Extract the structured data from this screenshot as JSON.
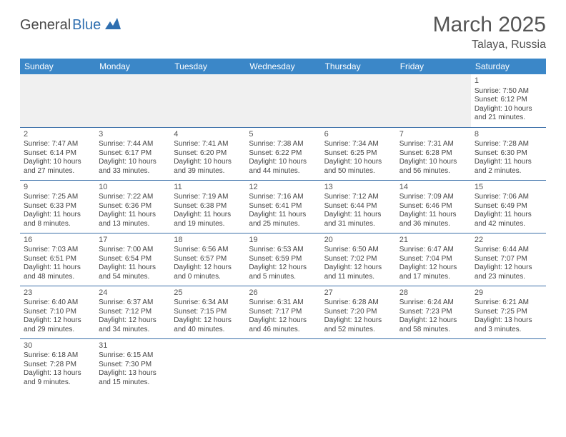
{
  "logo": {
    "text1": "General",
    "text2": "Blue"
  },
  "title": "March 2025",
  "location": "Talaya, Russia",
  "colors": {
    "header_bg": "#3b87c8",
    "header_fg": "#ffffff",
    "rule": "#3b6fa8",
    "text": "#444444",
    "title": "#555555"
  },
  "weekdays": [
    "Sunday",
    "Monday",
    "Tuesday",
    "Wednesday",
    "Thursday",
    "Friday",
    "Saturday"
  ],
  "weeks": [
    [
      null,
      null,
      null,
      null,
      null,
      null,
      {
        "n": "1",
        "sr": "Sunrise: 7:50 AM",
        "ss": "Sunset: 6:12 PM",
        "dl": "Daylight: 10 hours and 21 minutes."
      }
    ],
    [
      {
        "n": "2",
        "sr": "Sunrise: 7:47 AM",
        "ss": "Sunset: 6:14 PM",
        "dl": "Daylight: 10 hours and 27 minutes."
      },
      {
        "n": "3",
        "sr": "Sunrise: 7:44 AM",
        "ss": "Sunset: 6:17 PM",
        "dl": "Daylight: 10 hours and 33 minutes."
      },
      {
        "n": "4",
        "sr": "Sunrise: 7:41 AM",
        "ss": "Sunset: 6:20 PM",
        "dl": "Daylight: 10 hours and 39 minutes."
      },
      {
        "n": "5",
        "sr": "Sunrise: 7:38 AM",
        "ss": "Sunset: 6:22 PM",
        "dl": "Daylight: 10 hours and 44 minutes."
      },
      {
        "n": "6",
        "sr": "Sunrise: 7:34 AM",
        "ss": "Sunset: 6:25 PM",
        "dl": "Daylight: 10 hours and 50 minutes."
      },
      {
        "n": "7",
        "sr": "Sunrise: 7:31 AM",
        "ss": "Sunset: 6:28 PM",
        "dl": "Daylight: 10 hours and 56 minutes."
      },
      {
        "n": "8",
        "sr": "Sunrise: 7:28 AM",
        "ss": "Sunset: 6:30 PM",
        "dl": "Daylight: 11 hours and 2 minutes."
      }
    ],
    [
      {
        "n": "9",
        "sr": "Sunrise: 7:25 AM",
        "ss": "Sunset: 6:33 PM",
        "dl": "Daylight: 11 hours and 8 minutes."
      },
      {
        "n": "10",
        "sr": "Sunrise: 7:22 AM",
        "ss": "Sunset: 6:36 PM",
        "dl": "Daylight: 11 hours and 13 minutes."
      },
      {
        "n": "11",
        "sr": "Sunrise: 7:19 AM",
        "ss": "Sunset: 6:38 PM",
        "dl": "Daylight: 11 hours and 19 minutes."
      },
      {
        "n": "12",
        "sr": "Sunrise: 7:16 AM",
        "ss": "Sunset: 6:41 PM",
        "dl": "Daylight: 11 hours and 25 minutes."
      },
      {
        "n": "13",
        "sr": "Sunrise: 7:12 AM",
        "ss": "Sunset: 6:44 PM",
        "dl": "Daylight: 11 hours and 31 minutes."
      },
      {
        "n": "14",
        "sr": "Sunrise: 7:09 AM",
        "ss": "Sunset: 6:46 PM",
        "dl": "Daylight: 11 hours and 36 minutes."
      },
      {
        "n": "15",
        "sr": "Sunrise: 7:06 AM",
        "ss": "Sunset: 6:49 PM",
        "dl": "Daylight: 11 hours and 42 minutes."
      }
    ],
    [
      {
        "n": "16",
        "sr": "Sunrise: 7:03 AM",
        "ss": "Sunset: 6:51 PM",
        "dl": "Daylight: 11 hours and 48 minutes."
      },
      {
        "n": "17",
        "sr": "Sunrise: 7:00 AM",
        "ss": "Sunset: 6:54 PM",
        "dl": "Daylight: 11 hours and 54 minutes."
      },
      {
        "n": "18",
        "sr": "Sunrise: 6:56 AM",
        "ss": "Sunset: 6:57 PM",
        "dl": "Daylight: 12 hours and 0 minutes."
      },
      {
        "n": "19",
        "sr": "Sunrise: 6:53 AM",
        "ss": "Sunset: 6:59 PM",
        "dl": "Daylight: 12 hours and 5 minutes."
      },
      {
        "n": "20",
        "sr": "Sunrise: 6:50 AM",
        "ss": "Sunset: 7:02 PM",
        "dl": "Daylight: 12 hours and 11 minutes."
      },
      {
        "n": "21",
        "sr": "Sunrise: 6:47 AM",
        "ss": "Sunset: 7:04 PM",
        "dl": "Daylight: 12 hours and 17 minutes."
      },
      {
        "n": "22",
        "sr": "Sunrise: 6:44 AM",
        "ss": "Sunset: 7:07 PM",
        "dl": "Daylight: 12 hours and 23 minutes."
      }
    ],
    [
      {
        "n": "23",
        "sr": "Sunrise: 6:40 AM",
        "ss": "Sunset: 7:10 PM",
        "dl": "Daylight: 12 hours and 29 minutes."
      },
      {
        "n": "24",
        "sr": "Sunrise: 6:37 AM",
        "ss": "Sunset: 7:12 PM",
        "dl": "Daylight: 12 hours and 34 minutes."
      },
      {
        "n": "25",
        "sr": "Sunrise: 6:34 AM",
        "ss": "Sunset: 7:15 PM",
        "dl": "Daylight: 12 hours and 40 minutes."
      },
      {
        "n": "26",
        "sr": "Sunrise: 6:31 AM",
        "ss": "Sunset: 7:17 PM",
        "dl": "Daylight: 12 hours and 46 minutes."
      },
      {
        "n": "27",
        "sr": "Sunrise: 6:28 AM",
        "ss": "Sunset: 7:20 PM",
        "dl": "Daylight: 12 hours and 52 minutes."
      },
      {
        "n": "28",
        "sr": "Sunrise: 6:24 AM",
        "ss": "Sunset: 7:23 PM",
        "dl": "Daylight: 12 hours and 58 minutes."
      },
      {
        "n": "29",
        "sr": "Sunrise: 6:21 AM",
        "ss": "Sunset: 7:25 PM",
        "dl": "Daylight: 13 hours and 3 minutes."
      }
    ],
    [
      {
        "n": "30",
        "sr": "Sunrise: 6:18 AM",
        "ss": "Sunset: 7:28 PM",
        "dl": "Daylight: 13 hours and 9 minutes."
      },
      {
        "n": "31",
        "sr": "Sunrise: 6:15 AM",
        "ss": "Sunset: 7:30 PM",
        "dl": "Daylight: 13 hours and 15 minutes."
      },
      null,
      null,
      null,
      null,
      null
    ]
  ]
}
